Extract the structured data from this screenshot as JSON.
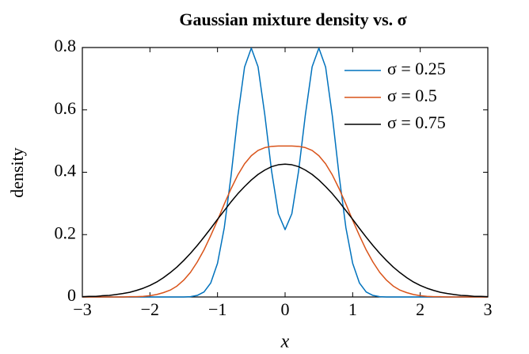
{
  "chart_data": {
    "type": "line",
    "title": "Gaussian mixture density vs. σ",
    "x_label": "x",
    "y_label": "density",
    "x": [
      -3,
      -2.9,
      -2.8,
      -2.7,
      -2.6,
      -2.5,
      -2.4,
      -2.3,
      -2.2,
      -2.1,
      -2,
      -1.9,
      -1.8,
      -1.7,
      -1.6,
      -1.5,
      -1.4,
      -1.3,
      -1.2,
      -1.1,
      -1,
      -0.9,
      -0.8,
      -0.7,
      -0.6,
      -0.5,
      -0.4,
      -0.3,
      -0.2,
      -0.1,
      0,
      0.1,
      0.2,
      0.3,
      0.4,
      0.5,
      0.6,
      0.7,
      0.8,
      0.9,
      1,
      1.1,
      1.2,
      1.3,
      1.4,
      1.5,
      1.6,
      1.7,
      1.8,
      1.9,
      2,
      2.1,
      2.2,
      2.3,
      2.4,
      2.5,
      2.6,
      2.7,
      2.8,
      2.9,
      3
    ],
    "series": [
      {
        "name": "σ = 0.25",
        "color": "#0072bd",
        "values": [
          0,
          0,
          0,
          0,
          0,
          0,
          0,
          0,
          0,
          0,
          0,
          0,
          0,
          0,
          0,
          0,
          0.001,
          0.005,
          0.016,
          0.045,
          0.108,
          0.222,
          0.388,
          0.579,
          0.737,
          0.798,
          0.738,
          0.584,
          0.404,
          0.267,
          0.216,
          0.267,
          0.404,
          0.584,
          0.738,
          0.798,
          0.737,
          0.579,
          0.388,
          0.222,
          0.108,
          0.045,
          0.016,
          0.005,
          0.001,
          0,
          0,
          0,
          0,
          0,
          0,
          0,
          0,
          0,
          0,
          0,
          0,
          0,
          0,
          0,
          0
        ]
      },
      {
        "name": "σ = 0.5",
        "color": "#d95319",
        "values": [
          0,
          0,
          0,
          0,
          0,
          0,
          0,
          0.001,
          0.001,
          0.002,
          0.004,
          0.008,
          0.014,
          0.022,
          0.035,
          0.054,
          0.079,
          0.112,
          0.151,
          0.197,
          0.246,
          0.298,
          0.347,
          0.391,
          0.427,
          0.453,
          0.47,
          0.479,
          0.483,
          0.484,
          0.484,
          0.484,
          0.483,
          0.479,
          0.47,
          0.453,
          0.427,
          0.391,
          0.347,
          0.298,
          0.246,
          0.197,
          0.151,
          0.112,
          0.079,
          0.054,
          0.035,
          0.022,
          0.014,
          0.008,
          0.004,
          0.002,
          0.001,
          0.001,
          0,
          0,
          0,
          0,
          0,
          0,
          0
        ]
      },
      {
        "name": "σ = 0.75",
        "color": "#000000",
        "values": [
          0.001,
          0.002,
          0.002,
          0.004,
          0.005,
          0.008,
          0.011,
          0.015,
          0.021,
          0.028,
          0.037,
          0.048,
          0.062,
          0.078,
          0.096,
          0.117,
          0.14,
          0.165,
          0.192,
          0.22,
          0.249,
          0.277,
          0.305,
          0.331,
          0.354,
          0.375,
          0.393,
          0.407,
          0.418,
          0.424,
          0.426,
          0.424,
          0.418,
          0.407,
          0.393,
          0.375,
          0.354,
          0.331,
          0.305,
          0.277,
          0.249,
          0.22,
          0.192,
          0.165,
          0.14,
          0.117,
          0.096,
          0.078,
          0.062,
          0.048,
          0.037,
          0.028,
          0.021,
          0.015,
          0.011,
          0.008,
          0.005,
          0.004,
          0.002,
          0.002,
          0.001
        ]
      }
    ],
    "xlim": [
      -3,
      3
    ],
    "xticks": [
      {
        "value": -3,
        "label": "−3"
      },
      {
        "value": -2,
        "label": "−2"
      },
      {
        "value": -1,
        "label": "−1"
      },
      0,
      1,
      2,
      3
    ],
    "ylim": [
      0,
      0.8
    ],
    "yticks": [
      0,
      0.2,
      0.4,
      0.6,
      0.8
    ],
    "grid": false,
    "legend": "upper-right"
  }
}
